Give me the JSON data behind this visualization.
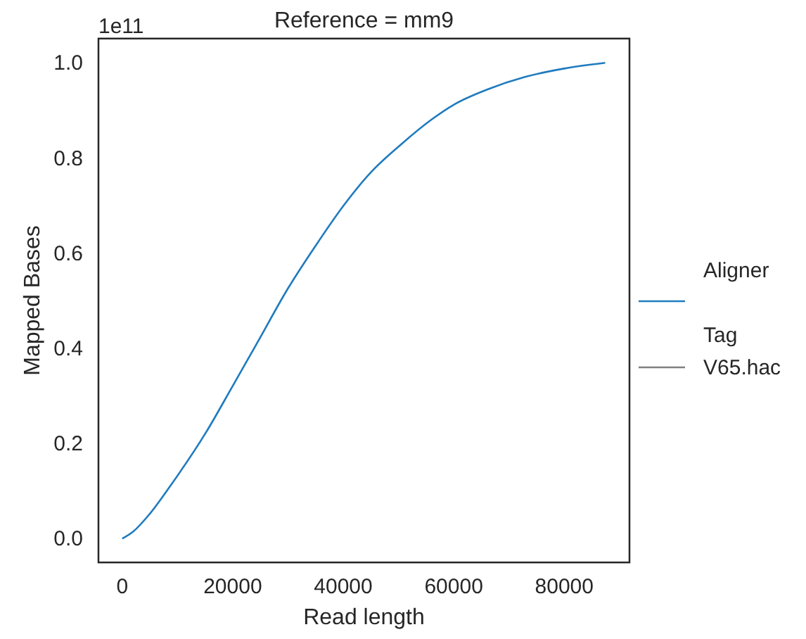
{
  "chart_data": {
    "type": "line",
    "title": "Reference = mm9",
    "xlabel": "Read length",
    "ylabel": "Mapped Bases",
    "legend_title": "Aligner",
    "annotations": [
      "1e11",
      "Tag"
    ],
    "xlim": [
      -4300,
      91800
    ],
    "xticks": [
      0,
      20000,
      40000,
      60000,
      80000
    ],
    "ylim": [
      -0.05,
      1.051
    ],
    "yticks": [
      {
        "value": 0,
        "label": "0.0"
      },
      0.2,
      0.4,
      0.6,
      0.8,
      {
        "value": 1,
        "label": "1.0"
      }
    ],
    "x": [
      0,
      2000,
      4900,
      8650,
      15200,
      20000,
      24500,
      30000,
      35600,
      40000,
      45000,
      50500,
      56000,
      60000,
      66300,
      72800,
      80000,
      87400
    ],
    "series": [
      {
        "name": "V65.hac",
        "color": "#1f7bbf",
        "values": [
          0,
          0.015,
          0.051,
          0.11,
          0.224,
          0.321,
          0.413,
          0.526,
          0.626,
          0.699,
          0.77,
          0.829,
          0.881,
          0.912,
          0.945,
          0.97,
          0.988,
          1.0
        ]
      }
    ],
    "grid": false,
    "legend": "right"
  }
}
